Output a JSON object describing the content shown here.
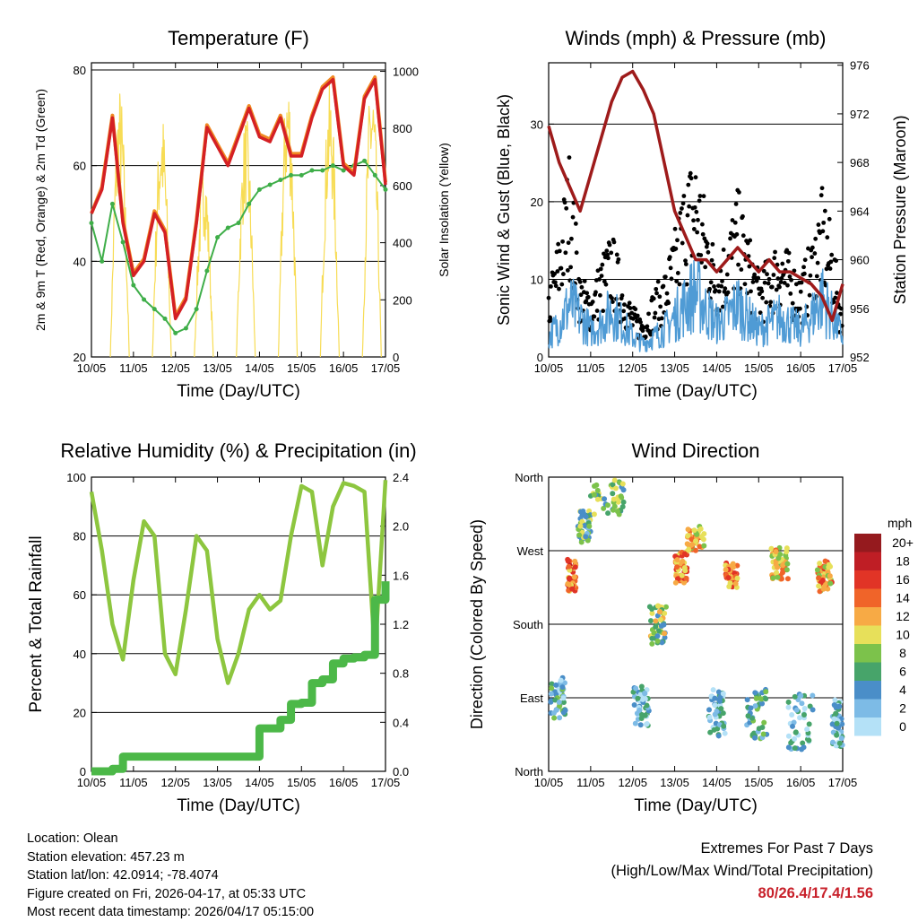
{
  "colors": {
    "temp_2m": "#d42024",
    "temp_9m": "#f08a24",
    "dewpoint": "#3fae49",
    "solar": "#f7dc55",
    "wind": "#4f9bd5",
    "gust": "#000000",
    "pressure": "#9e1b1b",
    "rh": "#8dc63f",
    "precip": "#4cb848"
  },
  "footer": {
    "location": "Location: Olean",
    "elevation": "Station elevation: 457.23 m",
    "latlon": "Station lat/lon: 42.0914; -78.4074",
    "created": "Figure created on Fri, 2026-04-17, at 05:33 UTC",
    "recent": "Most recent data timestamp: 2026/04/17 05:15:00",
    "extremes_title": "Extremes For Past 7 Days",
    "extremes_subtitle": "(High/Low/Max Wind/Total Precipitation)",
    "extremes_values": "80/26.4/17.4/1.56"
  },
  "chart_data": [
    {
      "type": "line",
      "title": "Temperature (F)",
      "xlabel": "Time (Day/UTC)",
      "ylabel": "2m & 9m T (Red, Orange) & 2m Td (Green)",
      "ylabel_right": "Solar Insolation (Yellow)",
      "xticks": [
        "10/05",
        "11/05",
        "12/05",
        "13/05",
        "14/05",
        "15/05",
        "16/05",
        "17/05"
      ],
      "yticks": [
        "20",
        "40",
        "60",
        "80"
      ],
      "yticks_right": [
        "0",
        "200",
        "400",
        "600",
        "800",
        "1000"
      ],
      "ylim": [
        20,
        81.5
      ],
      "ylim_right": [
        0,
        1030
      ],
      "x_step_days": 0.25,
      "series": [
        {
          "name": "2m T",
          "values": [
            50,
            55,
            70,
            48,
            37,
            40,
            50,
            46,
            28,
            32,
            48,
            68,
            64,
            60,
            66,
            72,
            66,
            65,
            70,
            62,
            62,
            70,
            76,
            78,
            60,
            58,
            74,
            78,
            56
          ]
        },
        {
          "name": "9m T",
          "values": [
            50,
            55.5,
            70.5,
            48.5,
            37.5,
            40.5,
            50.5,
            46.5,
            28.5,
            32.5,
            48.5,
            68.5,
            64.5,
            60.5,
            66.5,
            72.5,
            66.5,
            65.5,
            70.5,
            62.5,
            62.5,
            70.5,
            76.5,
            78.5,
            60.5,
            58.5,
            74.5,
            78.5,
            56.5
          ]
        },
        {
          "name": "2m Td",
          "values": [
            48,
            40,
            52,
            44,
            35,
            32,
            30,
            28,
            25,
            26,
            30,
            38,
            45,
            47,
            48,
            52,
            55,
            56,
            57,
            58,
            58,
            59,
            59,
            60,
            59,
            60,
            61,
            58,
            55
          ]
        },
        {
          "name": "Solar daily peak",
          "values": [
            950,
            870,
            700,
            850,
            1000,
            960,
            1000
          ]
        }
      ]
    },
    {
      "type": "scatter",
      "title": "Winds (mph) & Pressure (mb)",
      "xlabel": "Time (Day/UTC)",
      "ylabel": "Sonic Wind & Gust (Blue, Black)",
      "ylabel_right": "Station Pressure (Maroon)",
      "xticks": [
        "10/05",
        "11/05",
        "12/05",
        "13/05",
        "14/05",
        "15/05",
        "16/05",
        "17/05"
      ],
      "yticks": [
        "0",
        "10",
        "20",
        "30"
      ],
      "yticks_right": [
        "952",
        "956",
        "960",
        "964",
        "968",
        "972",
        "976"
      ],
      "ylim": [
        0,
        37.9
      ],
      "ylim_right": [
        952,
        976.2
      ],
      "x_step_days": 0.25,
      "series": [
        {
          "name": "Wind",
          "values": [
            3,
            5,
            8,
            6,
            4,
            5,
            7,
            5,
            3,
            2,
            3,
            4,
            6,
            8,
            10,
            7,
            5,
            6,
            8,
            6,
            4,
            5,
            6,
            5,
            4,
            6,
            9,
            6,
            3
          ]
        },
        {
          "name": "Gust",
          "values": [
            8,
            15,
            25,
            10,
            8,
            12,
            15,
            10,
            6,
            5,
            8,
            10,
            15,
            22,
            25,
            18,
            12,
            15,
            20,
            15,
            10,
            12,
            15,
            12,
            10,
            14,
            20,
            15,
            5
          ]
        },
        {
          "name": "Pressure",
          "values": [
            971,
            968,
            966,
            964,
            967,
            970,
            973,
            975,
            975.5,
            974,
            972,
            968,
            964,
            962,
            960,
            960,
            959,
            960,
            961,
            960,
            959,
            960,
            959,
            959,
            958.5,
            958,
            957,
            955,
            958
          ]
        }
      ]
    },
    {
      "type": "line",
      "title": "Relative Humidity (%) & Precipitation (in)",
      "xlabel": "Time (Day/UTC)",
      "ylabel": "Percent & Total Rainfall",
      "xticks": [
        "10/05",
        "11/05",
        "12/05",
        "13/05",
        "14/05",
        "15/05",
        "16/05",
        "17/05"
      ],
      "yticks": [
        "0",
        "20",
        "40",
        "60",
        "80",
        "100"
      ],
      "yticks_right": [
        "0.0",
        "0.4",
        "0.8",
        "1.2",
        "1.6",
        "2.0",
        "2.4"
      ],
      "ylim": [
        0,
        100
      ],
      "ylim_right": [
        0,
        2.4
      ],
      "x_step_days": 0.25,
      "series": [
        {
          "name": "RH",
          "values": [
            95,
            75,
            50,
            38,
            65,
            85,
            80,
            40,
            33,
            55,
            80,
            75,
            45,
            30,
            40,
            55,
            60,
            55,
            58,
            80,
            97,
            95,
            70,
            90,
            98,
            97,
            95,
            40,
            99
          ]
        },
        {
          "name": "Precip",
          "values": [
            0,
            0,
            0.02,
            0.12,
            0.12,
            0.12,
            0.12,
            0.12,
            0.12,
            0.12,
            0.12,
            0.12,
            0.12,
            0.12,
            0.12,
            0.12,
            0.35,
            0.35,
            0.42,
            0.55,
            0.56,
            0.72,
            0.75,
            0.88,
            0.92,
            0.93,
            0.95,
            1.4,
            1.55
          ]
        }
      ]
    },
    {
      "type": "scatter",
      "title": "Wind Direction",
      "xlabel": "Time (Day/UTC)",
      "ylabel": "Direction (Colored By Speed)",
      "xticks": [
        "10/05",
        "11/05",
        "12/05",
        "13/05",
        "14/05",
        "15/05",
        "16/05",
        "17/05"
      ],
      "yticks": [
        "North",
        "East",
        "South",
        "West",
        "North"
      ],
      "ylim": [
        0,
        360
      ],
      "legend": {
        "title": "mph",
        "labels": [
          "0",
          "2",
          "4",
          "6",
          "8",
          "10",
          "12",
          "14",
          "16",
          "18",
          "20+"
        ],
        "colors": [
          "#b4e1f7",
          "#7dbbe6",
          "#4a8ec8",
          "#47a46a",
          "#7cc24b",
          "#e7e05a",
          "#f7aa45",
          "#f06429",
          "#e13426",
          "#bf1e25",
          "#951a1e"
        ],
        "placement": "right"
      },
      "clusters": [
        {
          "days": [
            0.05,
            0.4
          ],
          "dir": 90,
          "spread": 25,
          "mph": 4
        },
        {
          "days": [
            0.45,
            0.65
          ],
          "dir": 240,
          "spread": 20,
          "mph": 14
        },
        {
          "days": [
            0.7,
            1.0
          ],
          "dir": 300,
          "spread": 20,
          "mph": 6
        },
        {
          "days": [
            1.0,
            1.8
          ],
          "dir": 335,
          "spread": 22,
          "mph": 7
        },
        {
          "days": [
            2.0,
            2.4
          ],
          "dir": 80,
          "spread": 25,
          "mph": 3
        },
        {
          "days": [
            2.4,
            2.8
          ],
          "dir": 180,
          "spread": 25,
          "mph": 8
        },
        {
          "days": [
            3.0,
            3.3
          ],
          "dir": 250,
          "spread": 20,
          "mph": 13
        },
        {
          "days": [
            3.3,
            3.7
          ],
          "dir": 285,
          "spread": 15,
          "mph": 11
        },
        {
          "days": [
            3.8,
            4.2
          ],
          "dir": 70,
          "spread": 30,
          "mph": 3
        },
        {
          "days": [
            4.2,
            4.5
          ],
          "dir": 240,
          "spread": 15,
          "mph": 13
        },
        {
          "days": [
            4.7,
            5.2
          ],
          "dir": 70,
          "spread": 30,
          "mph": 5
        },
        {
          "days": [
            5.3,
            5.7
          ],
          "dir": 255,
          "spread": 20,
          "mph": 11
        },
        {
          "days": [
            5.7,
            6.3
          ],
          "dir": 60,
          "spread": 35,
          "mph": 3
        },
        {
          "days": [
            6.4,
            6.75
          ],
          "dir": 240,
          "spread": 20,
          "mph": 12
        },
        {
          "days": [
            6.75,
            7.0
          ],
          "dir": 60,
          "spread": 30,
          "mph": 3
        }
      ]
    }
  ]
}
